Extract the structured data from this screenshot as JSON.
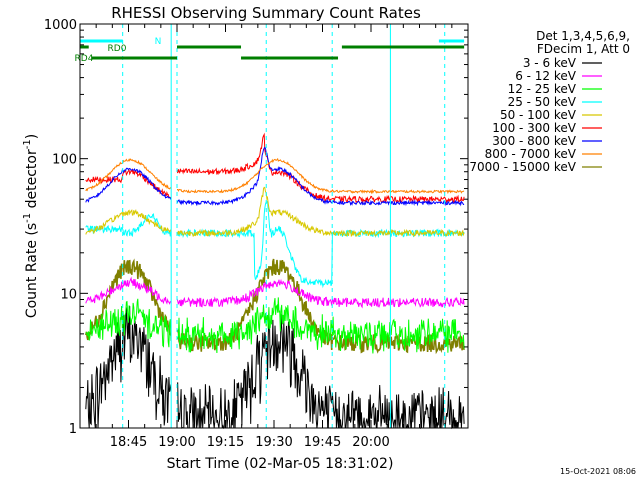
{
  "chart_data": {
    "type": "line",
    "title": "RHESSI Observing Summary Count Rates",
    "xlabel": "Start Time (02-Mar-05 18:31:02)",
    "ylabel_main": "Count Rate (s",
    "ylabel_sup1": "-1",
    "ylabel_mid": " detector",
    "ylabel_sup2": "-1",
    "ylabel_end": ")",
    "yscale": "log",
    "ylim": [
      1,
      1000
    ],
    "xlim_minutes": [
      18.5,
      20.5
    ],
    "x_ticks": [
      "18:45",
      "19:00",
      "19:15",
      "19:30",
      "19:45",
      "20:00"
    ],
    "y_ticks": [
      "1",
      "10",
      "100",
      "1000"
    ],
    "grid": false,
    "legend_placement": "right",
    "legend_header": [
      "Det 1,3,4,5,6,9,",
      "FDecim 1, Att 0"
    ],
    "series": [
      {
        "name": "3 - 6 keV",
        "color": "#000000"
      },
      {
        "name": "6 - 12 keV",
        "color": "#ff00ff"
      },
      {
        "name": "12 - 25 keV",
        "color": "#00ff00"
      },
      {
        "name": "25 - 50 keV",
        "color": "#00ffff"
      },
      {
        "name": "50 - 100 keV",
        "color": "#d8c800"
      },
      {
        "name": "100 - 300 keV",
        "color": "#ff0000"
      },
      {
        "name": "300 - 800 keV",
        "color": "#0000ff"
      },
      {
        "name": "800 - 7000 keV",
        "color": "#ff8000"
      },
      {
        "name": "7000 - 15000 keV",
        "color": "#808000"
      }
    ],
    "flag_labels": {
      "n": "N",
      "rd0": "RD0",
      "rd4": "RD4"
    },
    "flag_colors": {
      "n": "#00ffff",
      "rd": "#007f00"
    },
    "night_lines": [
      18.72,
      19.0,
      19.46,
      19.8,
      20.38
    ],
    "saa_lines": [
      18.97,
      20.1
    ]
  },
  "timestamp": "15-Oct-2021 08:06"
}
